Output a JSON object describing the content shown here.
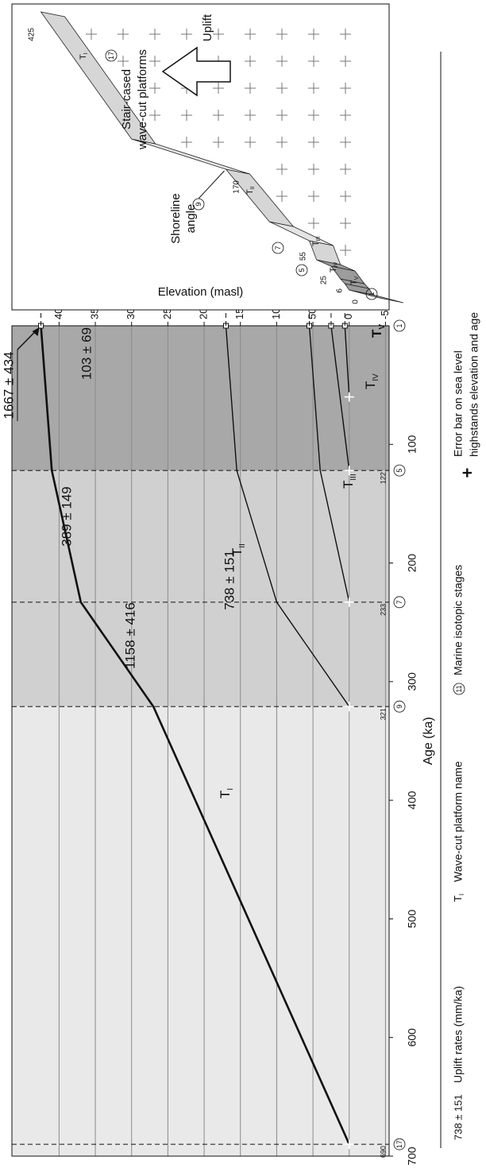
{
  "chart_data": {
    "type": "line",
    "xlabel": "Age (ka)",
    "ylabel": "Elevation (masl)",
    "xlim": [
      700,
      0
    ],
    "ylim": [
      -55,
      465
    ],
    "xticks": [
      100,
      200,
      300,
      400,
      500,
      600,
      700
    ],
    "yticks": [
      -50,
      0,
      50,
      100,
      150,
      200,
      250,
      300,
      350,
      400
    ],
    "grid": true,
    "series": [
      {
        "label": "T",
        "subscript": "I",
        "color": "#111111",
        "x": [
          690,
          321,
          233,
          122,
          0
        ],
        "values": [
          0,
          270,
          370,
          410,
          425
        ]
      },
      {
        "label": "T",
        "subscript": "II",
        "color": "#111111",
        "x": [
          321,
          233,
          122,
          0
        ],
        "values": [
          0,
          100,
          155,
          170
        ]
      },
      {
        "label": "T",
        "subscript": "III",
        "color": "#111111",
        "x": [
          233,
          122,
          0
        ],
        "values": [
          0,
          40,
          55
        ]
      },
      {
        "label": "T",
        "subscript": "IV",
        "color": "#111111",
        "x": [
          122,
          0
        ],
        "values": [
          0,
          25
        ]
      },
      {
        "label": "T",
        "subscript": "V",
        "color": "#111111",
        "x": [
          60,
          0
        ],
        "values": [
          0,
          6
        ]
      }
    ],
    "highstands": {
      "ages": [
        122,
        233,
        321,
        690
      ],
      "mis": [
        "5",
        "7",
        "9",
        "17"
      ],
      "holocene_mis": "1"
    },
    "uplift_rates": [
      "738 ± 151",
      "1158 ± 416",
      "389 ± 149",
      "103 ± 69",
      "1667 ± 434"
    ],
    "schematic": {
      "title": [
        "Stair-cased",
        "wave-cut platforms"
      ],
      "uplift": "Uplift",
      "shoreline": [
        "Shoreline",
        "angle"
      ]
    },
    "legend": {
      "rate_example": "738 ± 151",
      "rate_text": "Uplift rates (mm/ka)",
      "terrace_label": "T",
      "terrace_sub": "I",
      "terrace_text": "Wave-cut platform name",
      "mis_example": "11",
      "mis_text": "Marine isotopic stages",
      "error_symbol": "+",
      "error_text": [
        "Error bar on sea level",
        "highstands elevation and age"
      ]
    }
  }
}
